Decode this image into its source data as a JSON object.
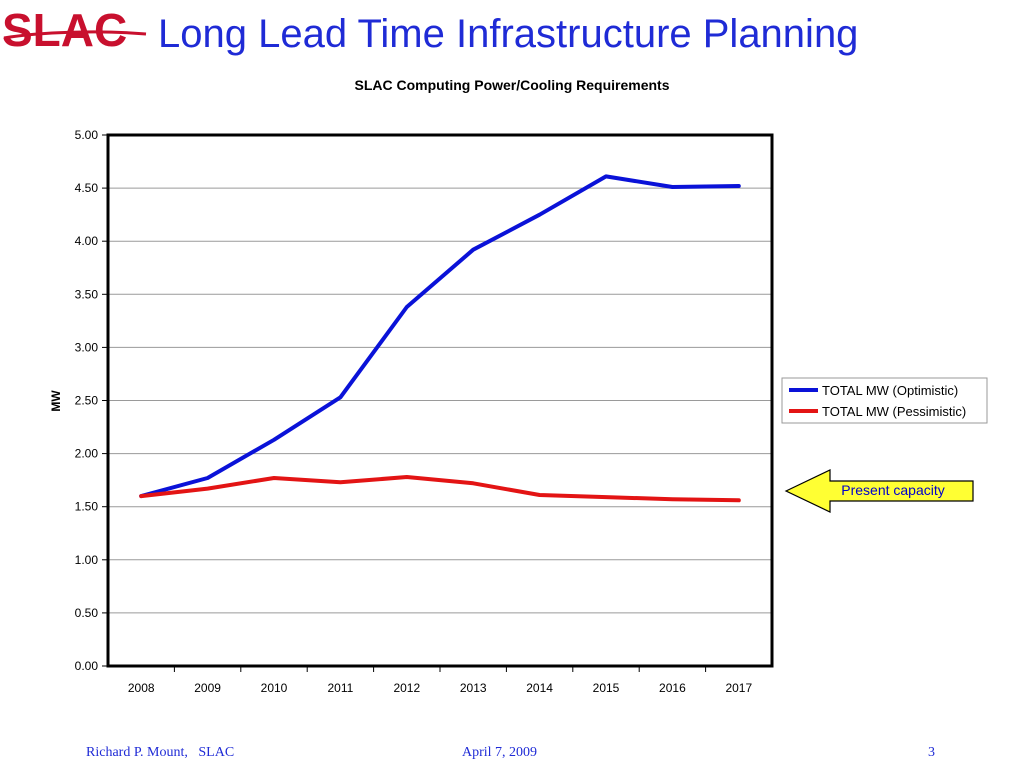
{
  "slide": {
    "logo_text": "SLAC",
    "title": "Long Lead Time Infrastructure Planning",
    "callout": "Present capacity",
    "footer_left": "Richard P. Mount,   SLAC",
    "footer_center": "April 7, 2009",
    "footer_right": "3"
  },
  "colors": {
    "title": "#1f2bd6",
    "logo": "#c8102e",
    "optimistic": "#0a12d8",
    "pessimistic": "#e31414",
    "callout_fill": "#ffff33"
  },
  "chart_data": {
    "type": "line",
    "title": "SLAC Computing Power/Cooling Requirements",
    "xlabel": "",
    "ylabel": "MW",
    "categories": [
      "2008",
      "2009",
      "2010",
      "2011",
      "2012",
      "2013",
      "2014",
      "2015",
      "2016",
      "2017"
    ],
    "ylim": [
      0,
      5
    ],
    "yticks": [
      "0.00",
      "0.50",
      "1.00",
      "1.50",
      "2.00",
      "2.50",
      "3.00",
      "3.50",
      "4.00",
      "4.50",
      "5.00"
    ],
    "grid": true,
    "legend": "right",
    "series": [
      {
        "name": "TOTAL MW (Optimistic)",
        "color": "#0a12d8",
        "values": [
          1.6,
          1.77,
          2.13,
          2.53,
          3.38,
          3.92,
          4.25,
          4.61,
          4.51,
          4.52
        ]
      },
      {
        "name": "TOTAL MW (Pessimistic)",
        "color": "#e31414",
        "values": [
          1.6,
          1.67,
          1.77,
          1.73,
          1.78,
          1.72,
          1.61,
          1.59,
          1.57,
          1.56
        ]
      }
    ]
  }
}
